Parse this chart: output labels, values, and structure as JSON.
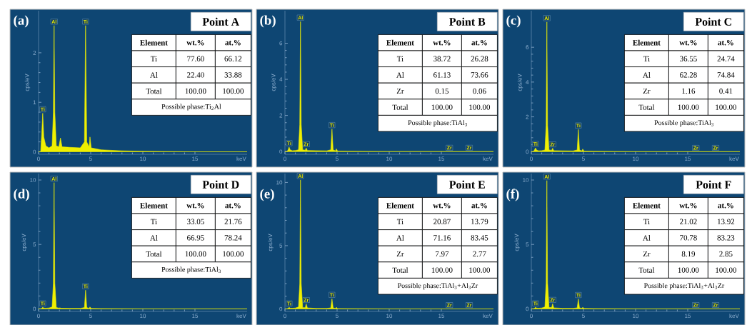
{
  "chart_data": [
    {
      "type": "area",
      "title": "Point A",
      "xlabel": "keV",
      "ylabel": "cps/eV",
      "color": "#f0f000",
      "xlim": [
        0,
        20
      ],
      "ylim": [
        -0.05,
        2.85
      ],
      "xticks": [
        0,
        5,
        10,
        15
      ],
      "yticks": [
        0,
        1,
        2
      ],
      "x": [
        0,
        0.2,
        0.3,
        0.4,
        0.5,
        0.7,
        1.0,
        1.3,
        1.42,
        1.49,
        1.56,
        1.7,
        1.95,
        2.1,
        2.25,
        3.0,
        4.0,
        4.4,
        4.51,
        4.62,
        4.85,
        4.93,
        5.05,
        6,
        8,
        10,
        15,
        20
      ],
      "values": [
        0,
        0,
        0.35,
        0.78,
        0.3,
        0.12,
        0.08,
        0.12,
        0.8,
        2.55,
        0.8,
        0.12,
        0.1,
        0.28,
        0.1,
        0.09,
        0.08,
        0.2,
        2.55,
        0.2,
        0.1,
        0.3,
        0.08,
        0.04,
        0.02,
        0.01,
        0,
        0
      ],
      "annotations": [
        "(a)",
        "Element",
        "wt.%",
        "at.%",
        "Ti",
        "77.60",
        "66.12",
        "Al",
        "22.40",
        "33.88",
        "Total",
        "100.00",
        "100.00",
        "Possible phase:Ti$_{2}$Al",
        {
          "text": "Al",
          "x": 1.49,
          "y": 2.55
        },
        {
          "text": "Ti",
          "x": 4.51,
          "y": 2.55
        },
        {
          "text": "Ti",
          "x": 0.4,
          "y": 0.78
        }
      ]
    },
    {
      "type": "area",
      "title": "Point B",
      "xlabel": "keV",
      "ylabel": "cps/eV",
      "color": "#f0f000",
      "xlim": [
        0,
        20
      ],
      "ylim": [
        -0.15,
        7.8
      ],
      "xticks": [
        0,
        5,
        10,
        15
      ],
      "yticks": [
        0,
        2,
        4,
        6
      ],
      "x": [
        0,
        0.2,
        0.3,
        0.4,
        0.5,
        0.7,
        1.0,
        1.3,
        1.42,
        1.49,
        1.56,
        1.7,
        1.95,
        2.04,
        2.15,
        3.0,
        4.0,
        4.4,
        4.51,
        4.62,
        4.85,
        4.93,
        5.05,
        6,
        8,
        10,
        15,
        15.77,
        17.67,
        20
      ],
      "values": [
        0,
        0,
        0.1,
        0.25,
        0.1,
        0.05,
        0.06,
        0.1,
        1.5,
        7.2,
        1.5,
        0.1,
        0.08,
        0.2,
        0.06,
        0.05,
        0.04,
        0.1,
        1.25,
        0.1,
        0.04,
        0.15,
        0.03,
        0.02,
        0.01,
        0,
        0,
        0,
        0,
        0
      ],
      "annotations": [
        "(b)",
        "Element",
        "wt.%",
        "at.%",
        "Ti",
        "38.72",
        "26.28",
        "Al",
        "61.13",
        "73.66",
        "Zr",
        "0.15",
        "0.06",
        "Total",
        "100.00",
        "100.00",
        "Possible phase:TiAl$_{3}$",
        {
          "text": "Al",
          "x": 1.49,
          "y": 7.2
        },
        {
          "text": "Ti",
          "x": 0.4,
          "y": 0.25
        },
        {
          "text": "Zr",
          "x": 2.04,
          "y": 0.2
        },
        {
          "text": "Ti",
          "x": 4.51,
          "y": 1.25
        },
        {
          "text": "Zr",
          "x": 15.77,
          "y": 0
        },
        {
          "text": "Zr",
          "x": 17.67,
          "y": 0
        }
      ]
    },
    {
      "type": "area",
      "title": "Point C",
      "xlabel": "keV",
      "ylabel": "cps/eV",
      "color": "#f0f000",
      "xlim": [
        0,
        20
      ],
      "ylim": [
        -0.15,
        8.1
      ],
      "xticks": [
        0,
        5,
        10,
        15
      ],
      "yticks": [
        0,
        2,
        4,
        6
      ],
      "x": [
        0,
        0.2,
        0.3,
        0.4,
        0.5,
        0.7,
        1.0,
        1.3,
        1.42,
        1.49,
        1.56,
        1.7,
        1.95,
        2.04,
        2.15,
        3.0,
        4.0,
        4.4,
        4.51,
        4.62,
        4.85,
        4.93,
        5.05,
        6,
        8,
        10,
        15,
        15.77,
        17.67,
        20
      ],
      "values": [
        0,
        0,
        0.1,
        0.22,
        0.1,
        0.05,
        0.06,
        0.1,
        1.5,
        7.45,
        1.5,
        0.1,
        0.08,
        0.2,
        0.06,
        0.05,
        0.04,
        0.1,
        1.28,
        0.1,
        0.04,
        0.15,
        0.03,
        0.02,
        0.01,
        0,
        0,
        0,
        0,
        0
      ],
      "annotations": [
        "(c)",
        "Element",
        "wt.%",
        "at.%",
        "Ti",
        "36.55",
        "24.74",
        "Al",
        "62.28",
        "74.84",
        "Zr",
        "1.16",
        "0.41",
        "Total",
        "100.00",
        "100.00",
        "Possible phase:TiAl$_{3}$",
        {
          "text": "Al",
          "x": 1.49,
          "y": 7.45
        },
        {
          "text": "Ti",
          "x": 0.4,
          "y": 0.22
        },
        {
          "text": "Zr",
          "x": 2.04,
          "y": 0.2
        },
        {
          "text": "Ti",
          "x": 4.51,
          "y": 1.28
        },
        {
          "text": "Zr",
          "x": 15.77,
          "y": 0
        },
        {
          "text": "Zr",
          "x": 17.67,
          "y": 0
        }
      ]
    },
    {
      "type": "area",
      "title": "Point D",
      "xlabel": "keV",
      "ylabel": "cps/eV",
      "color": "#f0f000",
      "xlim": [
        0,
        20
      ],
      "ylim": [
        -0.2,
        10.5
      ],
      "xticks": [
        0,
        5,
        10,
        15
      ],
      "yticks": [
        0,
        5,
        10
      ],
      "x": [
        0,
        0.2,
        0.3,
        0.4,
        0.5,
        0.7,
        1.0,
        1.3,
        1.42,
        1.49,
        1.56,
        1.7,
        1.95,
        2.04,
        2.15,
        3.0,
        4.0,
        4.4,
        4.51,
        4.62,
        4.85,
        4.93,
        5.05,
        6,
        8,
        10,
        15,
        20
      ],
      "values": [
        0,
        0,
        0.05,
        0.12,
        0.06,
        0.05,
        0.07,
        0.15,
        2.0,
        9.8,
        2.0,
        0.1,
        0.06,
        0.08,
        0.05,
        0.04,
        0.04,
        0.1,
        1.45,
        0.1,
        0.04,
        0.15,
        0.03,
        0.02,
        0.01,
        0,
        0,
        0
      ],
      "annotations": [
        "(d)",
        "Element",
        "wt.%",
        "at.%",
        "Ti",
        "33.05",
        "21.76",
        "Al",
        "66.95",
        "78.24",
        "Total",
        "100.00",
        "100.00",
        "Possible phase:TiAl$_{3}$",
        {
          "text": "Al",
          "x": 1.49,
          "y": 9.8
        },
        {
          "text": "Ti",
          "x": 4.51,
          "y": 1.45
        },
        {
          "text": "Ti",
          "x": 0.4,
          "y": 0.12
        }
      ]
    },
    {
      "type": "area",
      "title": "Point E",
      "xlabel": "keV",
      "ylabel": "cps/eV",
      "color": "#f0f000",
      "xlim": [
        0,
        20
      ],
      "ylim": [
        -0.2,
        10.7
      ],
      "xticks": [
        0,
        5,
        10,
        15
      ],
      "yticks": [
        0,
        5,
        10
      ],
      "x": [
        0,
        0.2,
        0.3,
        0.4,
        0.5,
        0.7,
        1.0,
        1.3,
        1.42,
        1.49,
        1.56,
        1.7,
        1.95,
        2.04,
        2.15,
        3.0,
        4.0,
        4.4,
        4.51,
        4.62,
        4.85,
        4.93,
        5.05,
        6,
        8,
        10,
        15,
        15.77,
        17.67,
        20
      ],
      "values": [
        0,
        0,
        0.05,
        0.12,
        0.06,
        0.05,
        0.07,
        0.15,
        2.0,
        10.2,
        2.0,
        0.1,
        0.1,
        0.4,
        0.08,
        0.04,
        0.04,
        0.08,
        0.8,
        0.08,
        0.04,
        0.12,
        0.03,
        0.02,
        0.01,
        0,
        0,
        0,
        0,
        0
      ],
      "annotations": [
        "(e)",
        "Element",
        "wt.%",
        "at.%",
        "Ti",
        "20.87",
        "13.79",
        "Al",
        "71.16",
        "83.45",
        "Zr",
        "7.97",
        "2.77",
        "Total",
        "100.00",
        "100.00",
        "Possible phase:TiAl$_{3}$+Al$_{3}$Zr",
        {
          "text": "Al",
          "x": 1.49,
          "y": 10.2
        },
        {
          "text": "Ti",
          "x": 0.4,
          "y": 0.12
        },
        {
          "text": "Zr",
          "x": 2.04,
          "y": 0.4
        },
        {
          "text": "Ti",
          "x": 4.51,
          "y": 0.8
        },
        {
          "text": "Zr",
          "x": 15.77,
          "y": 0
        },
        {
          "text": "Zr",
          "x": 17.67,
          "y": 0
        }
      ]
    },
    {
      "type": "area",
      "title": "Point F",
      "xlabel": "keV",
      "ylabel": "cps/eV",
      "color": "#f0f000",
      "xlim": [
        0,
        20
      ],
      "ylim": [
        -0.2,
        10.5
      ],
      "xticks": [
        0,
        5,
        10,
        15
      ],
      "yticks": [
        0,
        5,
        10
      ],
      "x": [
        0,
        0.2,
        0.3,
        0.4,
        0.5,
        0.7,
        1.0,
        1.3,
        1.42,
        1.49,
        1.56,
        1.7,
        1.95,
        2.04,
        2.15,
        3.0,
        4.0,
        4.4,
        4.51,
        4.62,
        4.85,
        4.93,
        5.05,
        6,
        8,
        10,
        15,
        15.77,
        17.67,
        20
      ],
      "values": [
        0,
        0,
        0.05,
        0.12,
        0.06,
        0.05,
        0.07,
        0.15,
        2.0,
        9.96,
        2.0,
        0.1,
        0.1,
        0.4,
        0.08,
        0.04,
        0.04,
        0.08,
        0.77,
        0.08,
        0.04,
        0.12,
        0.03,
        0.02,
        0.01,
        0,
        0,
        0,
        0,
        0
      ],
      "annotations": [
        "(f)",
        "Element",
        "wt.%",
        "at.%",
        "Ti",
        "21.02",
        "13.92",
        "Al",
        "70.78",
        "83.23",
        "Zr",
        "8.19",
        "2.85",
        "Total",
        "100.00",
        "100.00",
        "Possible phase:TiAl$_{3}$+Al$_{3}$Zr",
        {
          "text": "Al",
          "x": 1.49,
          "y": 9.96
        },
        {
          "text": "Ti",
          "x": 0.4,
          "y": 0.12
        },
        {
          "text": "Zr",
          "x": 2.04,
          "y": 0.4
        },
        {
          "text": "Ti",
          "x": 4.51,
          "y": 0.77
        },
        {
          "text": "Zr",
          "x": 15.77,
          "y": 0
        },
        {
          "text": "Zr",
          "x": 17.67,
          "y": 0
        }
      ]
    }
  ]
}
